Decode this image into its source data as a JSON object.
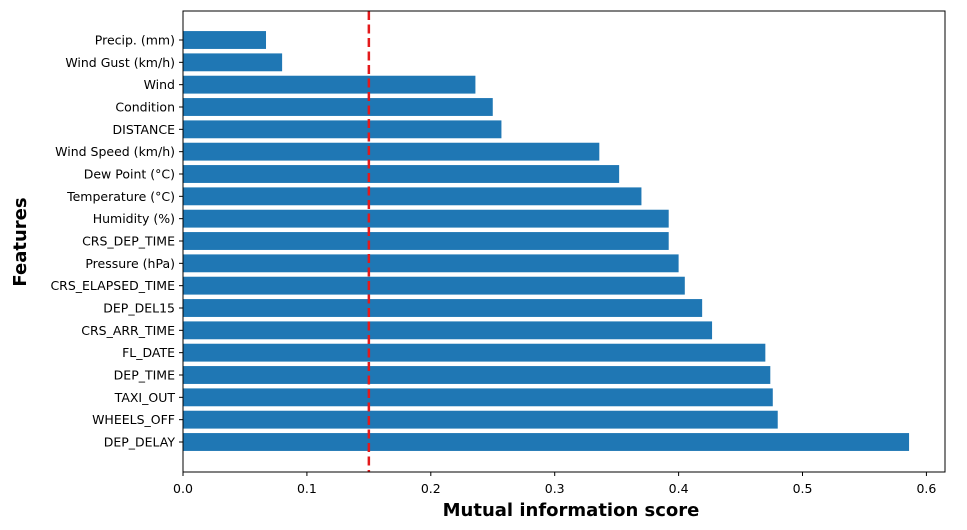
{
  "chart_data": {
    "type": "bar",
    "orientation": "horizontal",
    "xlabel": "Mutual information score",
    "ylabel": "Features",
    "xlim": [
      0.0,
      0.615
    ],
    "xticks": [
      "0.0",
      "0.1",
      "0.2",
      "0.3",
      "0.4",
      "0.5",
      "0.6"
    ],
    "xtick_values": [
      0.0,
      0.1,
      0.2,
      0.3,
      0.4,
      0.5,
      0.6
    ],
    "categories": [
      "DEP_DELAY",
      "WHEELS_OFF",
      "TAXI_OUT",
      "DEP_TIME",
      "FL_DATE",
      "CRS_ARR_TIME",
      "DEP_DEL15",
      "CRS_ELAPSED_TIME",
      "Pressure (hPa)",
      "CRS_DEP_TIME",
      "Humidity (%)",
      "Temperature (°C)",
      "Dew Point (°C)",
      "Wind Speed (km/h)",
      "DISTANCE",
      "Condition",
      "Wind",
      "Wind Gust (km/h)",
      "Precip. (mm)"
    ],
    "values": [
      0.586,
      0.48,
      0.476,
      0.474,
      0.47,
      0.427,
      0.419,
      0.405,
      0.4,
      0.392,
      0.392,
      0.37,
      0.352,
      0.336,
      0.257,
      0.25,
      0.236,
      0.08,
      0.067
    ],
    "threshold": 0.15,
    "colors": {
      "bar": "#1f77b4",
      "threshold": "#e31a1c",
      "axis": "#000000"
    },
    "grid": false,
    "legend": false
  }
}
